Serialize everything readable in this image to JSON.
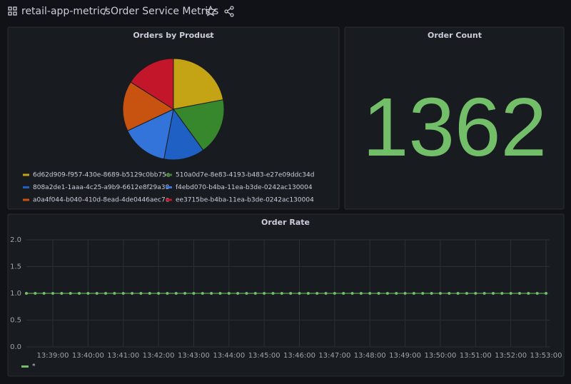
{
  "header": {
    "folder": "retail-app-metrics",
    "separator": "/",
    "title": "Order Service Metrics"
  },
  "chart_data": [
    {
      "type": "pie",
      "title": "Orders by Product",
      "categories": [
        "6d62d909-f957-430e-8689-b5129c0bb75e",
        "510a0d7e-8e83-4193-b483-e27e09ddc34d",
        "808a2de1-1aaa-4c25-a9b9-6612e8f29a38",
        "f4ebd070-b4ba-11ea-b3de-0242ac130004",
        "a0a4f044-b040-410d-8ead-4de0446aec7e",
        "ee3715be-b4ba-11ea-b3de-0242ac130004"
      ],
      "values": [
        22,
        18,
        13,
        15,
        16,
        16
      ],
      "colors": [
        "#c4a314",
        "#37872d",
        "#1f60c4",
        "#3274d9",
        "#c8520f",
        "#c4162a"
      ],
      "legend": "bottom"
    },
    {
      "type": "stat",
      "title": "Order Count",
      "value": 1362,
      "color": "#73bf69"
    },
    {
      "type": "line",
      "title": "Order Rate",
      "x": [
        "13:38:15",
        "13:38:30",
        "13:38:45",
        "13:39:00",
        "13:39:15",
        "13:39:30",
        "13:39:45",
        "13:40:00",
        "13:40:15",
        "13:40:30",
        "13:40:45",
        "13:41:00",
        "13:41:15",
        "13:41:30",
        "13:41:45",
        "13:42:00",
        "13:42:15",
        "13:42:30",
        "13:42:45",
        "13:43:00",
        "13:43:15",
        "13:43:30",
        "13:43:45",
        "13:44:00",
        "13:44:15",
        "13:44:30",
        "13:44:45",
        "13:45:00",
        "13:45:15",
        "13:45:30",
        "13:45:45",
        "13:46:00",
        "13:46:15",
        "13:46:30",
        "13:46:45",
        "13:47:00",
        "13:47:15",
        "13:47:30",
        "13:47:45",
        "13:48:00",
        "13:48:15",
        "13:48:30",
        "13:48:45",
        "13:49:00",
        "13:49:15",
        "13:49:30",
        "13:49:45",
        "13:50:00",
        "13:50:15",
        "13:50:30",
        "13:50:45",
        "13:51:00",
        "13:51:15",
        "13:51:30",
        "13:51:45",
        "13:52:00",
        "13:52:15",
        "13:52:30",
        "13:52:45",
        "13:53:00"
      ],
      "series": [
        {
          "name": "*",
          "color": "#73bf69",
          "values": [
            1,
            1,
            1,
            1,
            1,
            1,
            1,
            1,
            1,
            1,
            1,
            1,
            1,
            1,
            1,
            1,
            1,
            1,
            1,
            1,
            1,
            1,
            1,
            1,
            1,
            1,
            1,
            1,
            1,
            1,
            1,
            1,
            1,
            1,
            1,
            1,
            1,
            1,
            1,
            1,
            1,
            1,
            1,
            1,
            1,
            1,
            1,
            1,
            1,
            1,
            1,
            1,
            1,
            1,
            1,
            1,
            1,
            1,
            1,
            1
          ]
        }
      ],
      "xlim": [
        "13:38:15",
        "13:53:00"
      ],
      "xticks": [
        "13:39:00",
        "13:40:00",
        "13:41:00",
        "13:42:00",
        "13:43:00",
        "13:44:00",
        "13:45:00",
        "13:46:00",
        "13:47:00",
        "13:48:00",
        "13:49:00",
        "13:50:00",
        "13:51:00",
        "13:52:00",
        "13:53:00"
      ],
      "ylim": [
        0,
        2
      ],
      "yticks": [
        {
          "value": 0,
          "label": "0.0"
        },
        {
          "value": 0.5,
          "label": "0.5"
        },
        {
          "value": 1,
          "label": "1.0"
        },
        {
          "value": 1.5,
          "label": "1.5"
        },
        {
          "value": 2,
          "label": "2.0"
        }
      ],
      "grid": true,
      "legend": "bottom-left"
    }
  ]
}
